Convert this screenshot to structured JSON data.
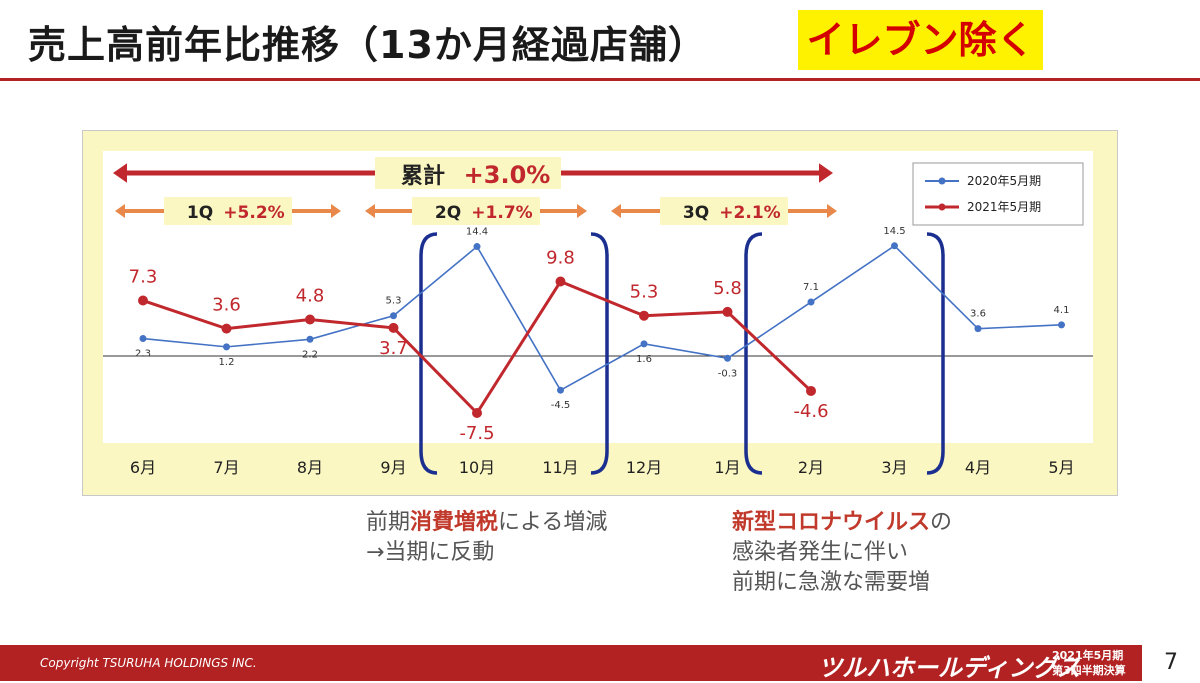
{
  "header": {
    "title": "売上高前年比推移（13か月経過店舗）",
    "highlight": "イレブン除く"
  },
  "chart_data": {
    "type": "line",
    "categories": [
      "6月",
      "7月",
      "8月",
      "9月",
      "10月",
      "11月",
      "12月",
      "1月",
      "2月",
      "3月",
      "4月",
      "5月"
    ],
    "series": [
      {
        "name": "2020年5月期",
        "color": "#4472c4",
        "values": [
          2.3,
          1.2,
          2.2,
          5.3,
          14.4,
          -4.5,
          1.6,
          -0.3,
          7.1,
          14.5,
          3.6,
          4.1
        ]
      },
      {
        "name": "2021年5月期",
        "color": "#c0282d",
        "values": [
          7.3,
          3.6,
          4.8,
          3.7,
          -7.5,
          9.8,
          5.3,
          5.8,
          -4.6,
          null,
          null,
          null
        ]
      }
    ],
    "ylim": [
      -12,
      18
    ],
    "legend": "top-right",
    "arrows": {
      "cumulative": {
        "label": "累計",
        "value": "+3.0%"
      },
      "quarters": [
        {
          "label": "1Q",
          "value": "+5.2%"
        },
        {
          "label": "2Q",
          "value": "+1.7%"
        },
        {
          "label": "3Q",
          "value": "+2.1%"
        }
      ]
    }
  },
  "notes": {
    "left": {
      "prefix": "前期",
      "red": "消費増税",
      "suffix": "による増減",
      "line2": "→当期に反動"
    },
    "right": {
      "red": "新型コロナウイルス",
      "suffix": "の",
      "line2": "感染者発生に伴い",
      "line3": "前期に急激な需要増"
    }
  },
  "footer": {
    "copyright": "Copyright  TSURUHA HOLDINGS INC.",
    "brand": "ツルハホールディングス",
    "fiscal_line1": "2021年5月期",
    "fiscal_line2": "第3四半期決算",
    "page": "7"
  }
}
